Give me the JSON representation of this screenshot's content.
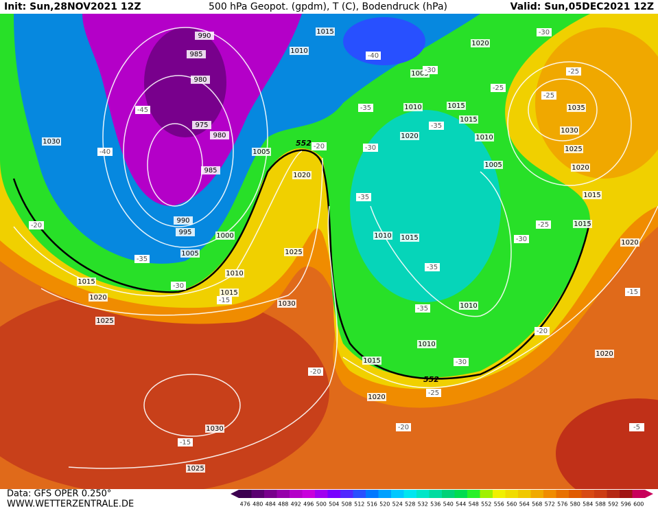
{
  "header": {
    "init": "Init: Sun,28NOV2021 12Z",
    "title": "500 hPa Geopot. (gpdm), T (C), Bodendruck (hPa)",
    "valid": "Valid: Sun,05DEC2021 12Z"
  },
  "footer": {
    "data": "Data: GFS OPER 0.250°",
    "site": "WWW.WETTERZENTRALE.DE"
  },
  "colorbar": {
    "labels": [
      476,
      480,
      484,
      488,
      492,
      496,
      500,
      504,
      508,
      512,
      516,
      520,
      524,
      528,
      532,
      536,
      540,
      544,
      548,
      552,
      556,
      560,
      564,
      568,
      572,
      576,
      580,
      584,
      588,
      592,
      596,
      600
    ],
    "colors": [
      "#3c0050",
      "#5a0070",
      "#78008c",
      "#9600aa",
      "#b400c8",
      "#c800dc",
      "#a000f0",
      "#7800ff",
      "#5028ff",
      "#2850ff",
      "#0078ff",
      "#00a0ff",
      "#00c8ff",
      "#00e6f0",
      "#00e6c8",
      "#00dca0",
      "#00d278",
      "#00dc50",
      "#28f028",
      "#a0f000",
      "#f0f000",
      "#f0dc00",
      "#f0c800",
      "#f0aa00",
      "#f08c00",
      "#e87000",
      "#e05a00",
      "#d84a14",
      "#cc3c14",
      "#b42814",
      "#a01414",
      "#c8005a"
    ]
  },
  "map": {
    "contour_552": "552",
    "isobar_labels": [
      990,
      985,
      980,
      975,
      980,
      985,
      990,
      995,
      1000,
      1005,
      1010,
      1015,
      1015,
      1020,
      1025,
      1030,
      1025,
      1030,
      1015,
      1020,
      1005,
      1010,
      1015,
      1015,
      1020,
      1010,
      1005,
      1035,
      1030,
      1025,
      1020,
      1015,
      1015,
      1020,
      1010,
      1015,
      1010,
      1010,
      1015,
      1020,
      1030,
      1025,
      1020,
      1020,
      1010,
      1005
    ],
    "temperature_labels": [
      -45,
      -40,
      -35,
      -30,
      -20,
      -15,
      -20,
      -20,
      -25,
      -30,
      -35,
      -35,
      -25,
      -30,
      -35,
      -30,
      -35,
      -35,
      -40,
      -30,
      -25,
      -25,
      -25,
      -30,
      -20,
      -15,
      -5,
      -15,
      -20
    ]
  }
}
